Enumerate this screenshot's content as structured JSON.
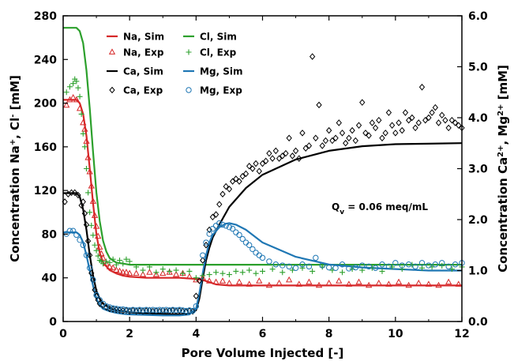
{
  "chart_data": {
    "type": "line",
    "xlabel": "Pore Volume Injected [-]",
    "ylabel_left_parts": [
      "Concentration Na",
      "+",
      ", Cl",
      "-",
      " [mM]"
    ],
    "ylabel_right_parts": [
      "Concentration Ca",
      "2+",
      ", Mg",
      "2+",
      " [mM]"
    ],
    "xlim": [
      0,
      12
    ],
    "ylim_left": [
      0,
      280
    ],
    "ylim_right": [
      0,
      6
    ],
    "x_ticks": [
      "0",
      "2",
      "4",
      "6",
      "8",
      "10",
      "12"
    ],
    "y_left_ticks": [
      "0",
      "40",
      "80",
      "120",
      "160",
      "200",
      "240",
      "280"
    ],
    "y_right_ticks": [
      "0.0",
      "1.0",
      "2.0",
      "3.0",
      "4.0",
      "5.0",
      "6.0"
    ],
    "annotation_parts": [
      "Q",
      "v",
      " = 0.06 meq/mL"
    ],
    "colors": {
      "Na": "#d62728",
      "Cl": "#2ca02c",
      "Ca": "#000000",
      "Mg": "#1f77b4"
    },
    "legend": [
      {
        "label": "Na, Sim",
        "kind": "line",
        "color": "#d62728"
      },
      {
        "label": "Cl, Sim",
        "kind": "line",
        "color": "#2ca02c"
      },
      {
        "label": "Na, Exp",
        "kind": "triangle",
        "color": "#d62728"
      },
      {
        "label": "Cl, Exp",
        "kind": "plus",
        "color": "#2ca02c"
      },
      {
        "label": "Ca, Sim",
        "kind": "line",
        "color": "#000000"
      },
      {
        "label": "Mg, Sim",
        "kind": "line",
        "color": "#1f77b4"
      },
      {
        "label": "Ca, Exp",
        "kind": "diamond",
        "color": "#000000"
      },
      {
        "label": "Mg, Exp",
        "kind": "circle",
        "color": "#1f77b4"
      }
    ],
    "series": [
      {
        "name": "Na, Sim",
        "axis": "left",
        "kind": "line",
        "color": "#d62728",
        "x": [
          0,
          0.4,
          0.5,
          0.6,
          0.7,
          0.8,
          0.9,
          1.0,
          1.1,
          1.2,
          1.4,
          1.6,
          1.8,
          2.0,
          2.5,
          3.0,
          3.5,
          4.0,
          4.2,
          4.4,
          4.6,
          5.0,
          6.0,
          8.0,
          12.0
        ],
        "y": [
          203,
          203,
          200,
          190,
          170,
          140,
          108,
          80,
          63,
          54,
          47,
          44,
          42,
          41,
          40,
          40,
          40,
          39,
          38,
          36,
          34,
          33,
          33,
          33,
          33
        ]
      },
      {
        "name": "Cl, Sim",
        "axis": "left",
        "kind": "line",
        "color": "#2ca02c",
        "x": [
          0,
          0.4,
          0.5,
          0.6,
          0.7,
          0.8,
          0.9,
          1.0,
          1.1,
          1.2,
          1.3,
          1.4,
          1.6,
          1.8,
          2.0,
          12.0
        ],
        "y": [
          269,
          269,
          266,
          255,
          230,
          195,
          155,
          118,
          92,
          74,
          64,
          58,
          54,
          53,
          52,
          52
        ]
      },
      {
        "name": "Ca, Sim",
        "axis": "right",
        "kind": "line",
        "color": "#000000",
        "x": [
          0,
          0.4,
          0.5,
          0.6,
          0.7,
          0.8,
          0.9,
          1.0,
          1.1,
          1.2,
          1.4,
          1.6,
          1.8,
          2.0,
          2.5,
          3.0,
          3.5,
          3.8,
          4.0,
          4.1,
          4.2,
          4.3,
          4.4,
          4.5,
          4.7,
          5.0,
          5.5,
          6.0,
          7.0,
          8.0,
          9.0,
          10.0,
          11.0,
          12.0
        ],
        "y": [
          2.52,
          2.52,
          2.45,
          2.2,
          1.8,
          1.3,
          0.9,
          0.6,
          0.45,
          0.35,
          0.26,
          0.22,
          0.2,
          0.18,
          0.16,
          0.15,
          0.14,
          0.15,
          0.22,
          0.45,
          0.85,
          1.2,
          1.45,
          1.65,
          1.9,
          2.25,
          2.62,
          2.88,
          3.18,
          3.35,
          3.44,
          3.48,
          3.49,
          3.5
        ]
      },
      {
        "name": "Mg, Sim",
        "axis": "right",
        "kind": "line",
        "color": "#1f77b4",
        "x": [
          0,
          0.4,
          0.5,
          0.6,
          0.7,
          0.8,
          0.9,
          1.0,
          1.1,
          1.2,
          1.4,
          1.6,
          1.8,
          2.0,
          2.5,
          3.0,
          3.5,
          3.8,
          4.0,
          4.1,
          4.2,
          4.3,
          4.4,
          4.5,
          4.7,
          4.9,
          5.0,
          5.2,
          5.5,
          6.0,
          7.0,
          8.0,
          9.0,
          10.0,
          11.0,
          12.0
        ],
        "y": [
          1.75,
          1.75,
          1.7,
          1.55,
          1.3,
          1.0,
          0.7,
          0.45,
          0.32,
          0.25,
          0.2,
          0.17,
          0.15,
          0.14,
          0.13,
          0.12,
          0.12,
          0.14,
          0.25,
          0.55,
          0.95,
          1.3,
          1.55,
          1.7,
          1.85,
          1.92,
          1.93,
          1.9,
          1.8,
          1.55,
          1.27,
          1.12,
          1.06,
          1.03,
          1.0,
          1.0
        ]
      },
      {
        "name": "Na, Exp",
        "axis": "left",
        "kind": "triangle",
        "color": "#d62728",
        "x": [
          0.1,
          0.2,
          0.3,
          0.4,
          0.5,
          0.6,
          0.65,
          0.7,
          0.75,
          0.8,
          0.85,
          0.9,
          0.95,
          1.0,
          1.05,
          1.1,
          1.15,
          1.2,
          1.3,
          1.4,
          1.5,
          1.6,
          1.7,
          1.8,
          1.9,
          2.0,
          2.2,
          2.4,
          2.6,
          2.8,
          3.0,
          3.2,
          3.4,
          3.6,
          3.8,
          4.0,
          4.2,
          4.4,
          4.6,
          4.8,
          5.0,
          5.3,
          5.6,
          5.9,
          6.2,
          6.5,
          6.8,
          7.1,
          7.4,
          7.7,
          8.0,
          8.3,
          8.6,
          8.9,
          9.2,
          9.5,
          9.8,
          10.1,
          10.4,
          10.7,
          11.0,
          11.3,
          11.6,
          11.9
        ],
        "y": [
          198,
          203,
          205,
          203,
          195,
          182,
          176,
          165,
          150,
          137,
          124,
          110,
          97,
          87,
          78,
          68,
          62,
          58,
          53,
          50,
          49,
          47,
          46,
          45,
          45,
          44,
          44,
          43,
          45,
          43,
          44,
          45,
          43,
          44,
          41,
          38,
          40,
          37,
          36,
          37,
          35,
          36,
          34,
          37,
          33,
          35,
          38,
          34,
          36,
          33,
          35,
          37,
          34,
          36,
          33,
          35,
          34,
          36,
          33,
          35,
          34,
          33,
          36,
          34
        ]
      },
      {
        "name": "Cl, Exp",
        "axis": "left",
        "kind": "plus",
        "color": "#2ca02c",
        "x": [
          0.1,
          0.2,
          0.3,
          0.35,
          0.4,
          0.45,
          0.5,
          0.55,
          0.6,
          0.65,
          0.7,
          0.75,
          0.8,
          0.85,
          0.9,
          0.95,
          1.0,
          1.05,
          1.1,
          1.15,
          1.2,
          1.3,
          1.4,
          1.5,
          1.6,
          1.7,
          1.8,
          1.9,
          2.0,
          2.2,
          2.4,
          2.6,
          2.8,
          3.0,
          3.2,
          3.4,
          3.6,
          3.8,
          4.0,
          4.2,
          4.4,
          4.6,
          4.8,
          5.0,
          5.2,
          5.4,
          5.6,
          5.8,
          6.0,
          6.3,
          6.6,
          6.9,
          7.2,
          7.5,
          7.8,
          8.1,
          8.4,
          8.7,
          9.0,
          9.3,
          9.6,
          9.9,
          10.2,
          10.5,
          10.8,
          11.1,
          11.4,
          11.7,
          12.0
        ],
        "y": [
          210,
          215,
          218,
          222,
          220,
          214,
          206,
          190,
          172,
          160,
          140,
          118,
          100,
          88,
          79,
          70,
          65,
          60,
          56,
          55,
          53,
          55,
          54,
          57,
          52,
          56,
          53,
          57,
          55,
          50,
          47,
          50,
          45,
          48,
          46,
          47,
          44,
          46,
          40,
          42,
          43,
          45,
          44,
          43,
          46,
          45,
          47,
          44,
          46,
          48,
          45,
          47,
          49,
          46,
          50,
          47,
          45,
          48,
          47,
          49,
          46,
          50,
          48,
          52,
          49,
          50,
          51,
          48,
          50
        ]
      },
      {
        "name": "Ca, Exp",
        "axis": "right",
        "kind": "diamond",
        "color": "#000000",
        "x": [
          0.05,
          0.15,
          0.25,
          0.35,
          0.45,
          0.55,
          0.6,
          0.65,
          0.7,
          0.75,
          0.8,
          0.85,
          0.9,
          0.95,
          1.0,
          1.05,
          1.1,
          1.2,
          1.3,
          1.4,
          1.5,
          1.6,
          1.7,
          1.8,
          1.9,
          2.0,
          2.1,
          2.2,
          2.3,
          2.4,
          2.5,
          2.6,
          2.7,
          2.8,
          2.9,
          3.0,
          3.1,
          3.2,
          3.3,
          3.4,
          3.5,
          3.6,
          3.7,
          3.8,
          3.9,
          4.0,
          4.1,
          4.2,
          4.3,
          4.4,
          4.5,
          4.6,
          4.7,
          4.8,
          4.9,
          5.0,
          5.1,
          5.2,
          5.3,
          5.4,
          5.5,
          5.6,
          5.7,
          5.8,
          5.9,
          6.0,
          6.1,
          6.2,
          6.3,
          6.4,
          6.5,
          6.6,
          6.7,
          6.8,
          6.9,
          7.0,
          7.1,
          7.2,
          7.3,
          7.4,
          7.5,
          7.6,
          7.7,
          7.8,
          7.9,
          8.0,
          8.1,
          8.2,
          8.3,
          8.4,
          8.5,
          8.6,
          8.7,
          8.8,
          8.9,
          9.0,
          9.1,
          9.2,
          9.3,
          9.4,
          9.5,
          9.6,
          9.7,
          9.8,
          9.9,
          10.0,
          10.1,
          10.2,
          10.3,
          10.4,
          10.5,
          10.6,
          10.7,
          10.8,
          10.9,
          11.0,
          11.1,
          11.2,
          11.3,
          11.4,
          11.5,
          11.6,
          11.7,
          11.8,
          11.9,
          12.0
        ],
        "y": [
          2.35,
          2.5,
          2.53,
          2.53,
          2.48,
          2.28,
          2.35,
          2.12,
          1.9,
          1.58,
          1.3,
          0.95,
          0.82,
          0.62,
          0.5,
          0.42,
          0.35,
          0.32,
          0.28,
          0.25,
          0.24,
          0.23,
          0.22,
          0.21,
          0.22,
          0.2,
          0.22,
          0.2,
          0.21,
          0.2,
          0.21,
          0.22,
          0.2,
          0.21,
          0.2,
          0.22,
          0.2,
          0.21,
          0.22,
          0.2,
          0.21,
          0.2,
          0.19,
          0.21,
          0.2,
          0.5,
          0.8,
          1.2,
          1.5,
          1.8,
          2.05,
          2.1,
          2.3,
          2.5,
          2.65,
          2.6,
          2.75,
          2.8,
          2.75,
          2.85,
          2.9,
          3.05,
          3.0,
          3.1,
          2.95,
          3.1,
          3.15,
          3.3,
          3.2,
          3.35,
          3.2,
          3.25,
          3.3,
          3.6,
          3.25,
          3.35,
          3.2,
          3.7,
          3.4,
          3.45,
          5.2,
          3.6,
          4.25,
          3.45,
          3.55,
          3.75,
          3.55,
          3.6,
          3.9,
          3.7,
          3.5,
          3.6,
          3.75,
          3.55,
          3.85,
          4.3,
          3.7,
          3.65,
          3.9,
          3.8,
          3.95,
          3.6,
          3.7,
          4.1,
          3.85,
          3.7,
          3.9,
          3.75,
          4.1,
          3.95,
          4.0,
          3.8,
          3.9,
          4.6,
          3.95,
          4.0,
          4.1,
          4.2,
          3.9,
          4.05,
          3.95,
          3.8,
          3.95,
          3.9,
          3.85,
          3.8
        ]
      },
      {
        "name": "Mg, Exp",
        "axis": "right",
        "kind": "circle",
        "color": "#1f77b4",
        "x": [
          0.1,
          0.2,
          0.3,
          0.4,
          0.5,
          0.6,
          0.7,
          0.8,
          0.9,
          1.0,
          1.1,
          1.2,
          1.3,
          1.4,
          1.5,
          1.6,
          1.7,
          1.8,
          1.9,
          2.0,
          2.1,
          2.2,
          2.3,
          2.4,
          2.5,
          2.6,
          2.7,
          2.8,
          2.9,
          3.0,
          3.1,
          3.2,
          3.3,
          3.4,
          3.5,
          3.6,
          3.7,
          3.8,
          3.9,
          4.0,
          4.2,
          4.3,
          4.4,
          4.5,
          4.6,
          4.7,
          4.8,
          4.9,
          5.0,
          5.1,
          5.2,
          5.3,
          5.4,
          5.5,
          5.6,
          5.7,
          5.8,
          5.9,
          6.0,
          6.2,
          6.4,
          6.6,
          6.8,
          7.0,
          7.2,
          7.4,
          7.6,
          7.8,
          8.0,
          8.2,
          8.4,
          8.6,
          8.8,
          9.0,
          9.2,
          9.4,
          9.6,
          9.8,
          10.0,
          10.2,
          10.4,
          10.6,
          10.8,
          11.0,
          11.2,
          11.4,
          11.6,
          11.8,
          12.0
        ],
        "y": [
          1.72,
          1.78,
          1.78,
          1.7,
          1.6,
          1.5,
          1.3,
          1.05,
          0.82,
          0.52,
          0.42,
          0.35,
          0.3,
          0.28,
          0.26,
          0.25,
          0.24,
          0.24,
          0.23,
          0.22,
          0.23,
          0.22,
          0.23,
          0.22,
          0.23,
          0.22,
          0.23,
          0.22,
          0.23,
          0.22,
          0.23,
          0.22,
          0.23,
          0.22,
          0.23,
          0.22,
          0.21,
          0.22,
          0.21,
          0.3,
          1.3,
          1.55,
          1.72,
          1.82,
          1.88,
          1.93,
          1.9,
          1.88,
          1.85,
          1.82,
          1.75,
          1.7,
          1.62,
          1.55,
          1.5,
          1.42,
          1.35,
          1.3,
          1.25,
          1.18,
          1.12,
          1.1,
          1.08,
          1.05,
          1.12,
          1.08,
          1.25,
          1.1,
          1.06,
          1.05,
          1.12,
          1.04,
          1.06,
          1.1,
          1.08,
          1.05,
          1.12,
          1.08,
          1.15,
          1.1,
          1.12,
          1.08,
          1.15,
          1.1,
          1.12,
          1.15,
          1.08,
          1.12,
          1.15
        ]
      }
    ]
  }
}
